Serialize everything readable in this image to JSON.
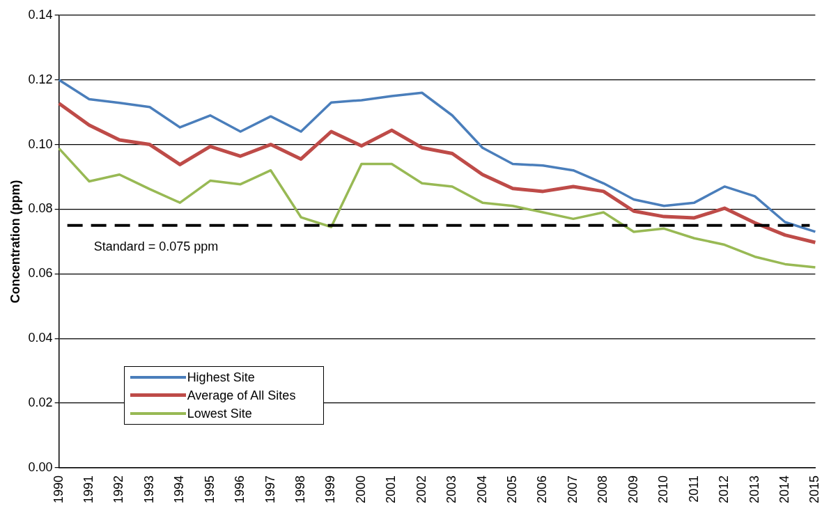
{
  "chart_data": {
    "type": "line",
    "ylabel": "Concentration (ppm)",
    "categories": [
      "1990",
      "1991",
      "1992",
      "1993",
      "1994",
      "1995",
      "1996",
      "1997",
      "1998",
      "1999",
      "2000",
      "2001",
      "2002",
      "2003",
      "2004",
      "2005",
      "2006",
      "2007",
      "2008",
      "2009",
      "2010",
      "2011",
      "2012",
      "2013",
      "2014",
      "2015"
    ],
    "series": [
      {
        "name": "Highest Site",
        "color": "#4a7ebb",
        "values": [
          0.12,
          0.114,
          0.1129,
          0.1116,
          0.1053,
          0.109,
          0.104,
          0.1087,
          0.104,
          0.113,
          0.1137,
          0.115,
          0.116,
          0.109,
          0.099,
          0.094,
          0.0935,
          0.092,
          0.088,
          0.083,
          0.081,
          0.082,
          0.087,
          0.084,
          0.076,
          0.073
        ]
      },
      {
        "name": "Average of All Sites",
        "color": "#be4b48",
        "values": [
          0.1127,
          0.106,
          0.1014,
          0.1,
          0.0938,
          0.0994,
          0.0964,
          0.1,
          0.0955,
          0.104,
          0.0996,
          0.1044,
          0.099,
          0.0972,
          0.0907,
          0.0864,
          0.0855,
          0.087,
          0.0855,
          0.0794,
          0.0777,
          0.0773,
          0.0803,
          0.0758,
          0.072,
          0.0697
        ]
      },
      {
        "name": "Lowest Site",
        "color": "#98b954",
        "values": [
          0.0988,
          0.0886,
          0.0907,
          0.0862,
          0.082,
          0.0888,
          0.0877,
          0.092,
          0.0775,
          0.0745,
          0.094,
          0.094,
          0.088,
          0.087,
          0.082,
          0.081,
          0.079,
          0.077,
          0.079,
          0.073,
          0.074,
          0.071,
          0.069,
          0.0653,
          0.063,
          0.062
        ]
      }
    ],
    "ylim": [
      0,
      0.14
    ],
    "yticks": [
      {
        "value": 0,
        "label": "0.00"
      },
      0.02,
      0.04,
      0.06,
      0.08,
      {
        "value": 0.1,
        "label": "0.10"
      },
      0.12,
      0.14
    ],
    "ref_lines": [
      {
        "axis": "y",
        "value": 0.075,
        "label": "Standard = 0.075 ppm",
        "color": "#000000",
        "line_style": "dashed"
      }
    ],
    "grid": "y",
    "legend": "bottom left",
    "marker": "none",
    "line_style": "solid"
  }
}
